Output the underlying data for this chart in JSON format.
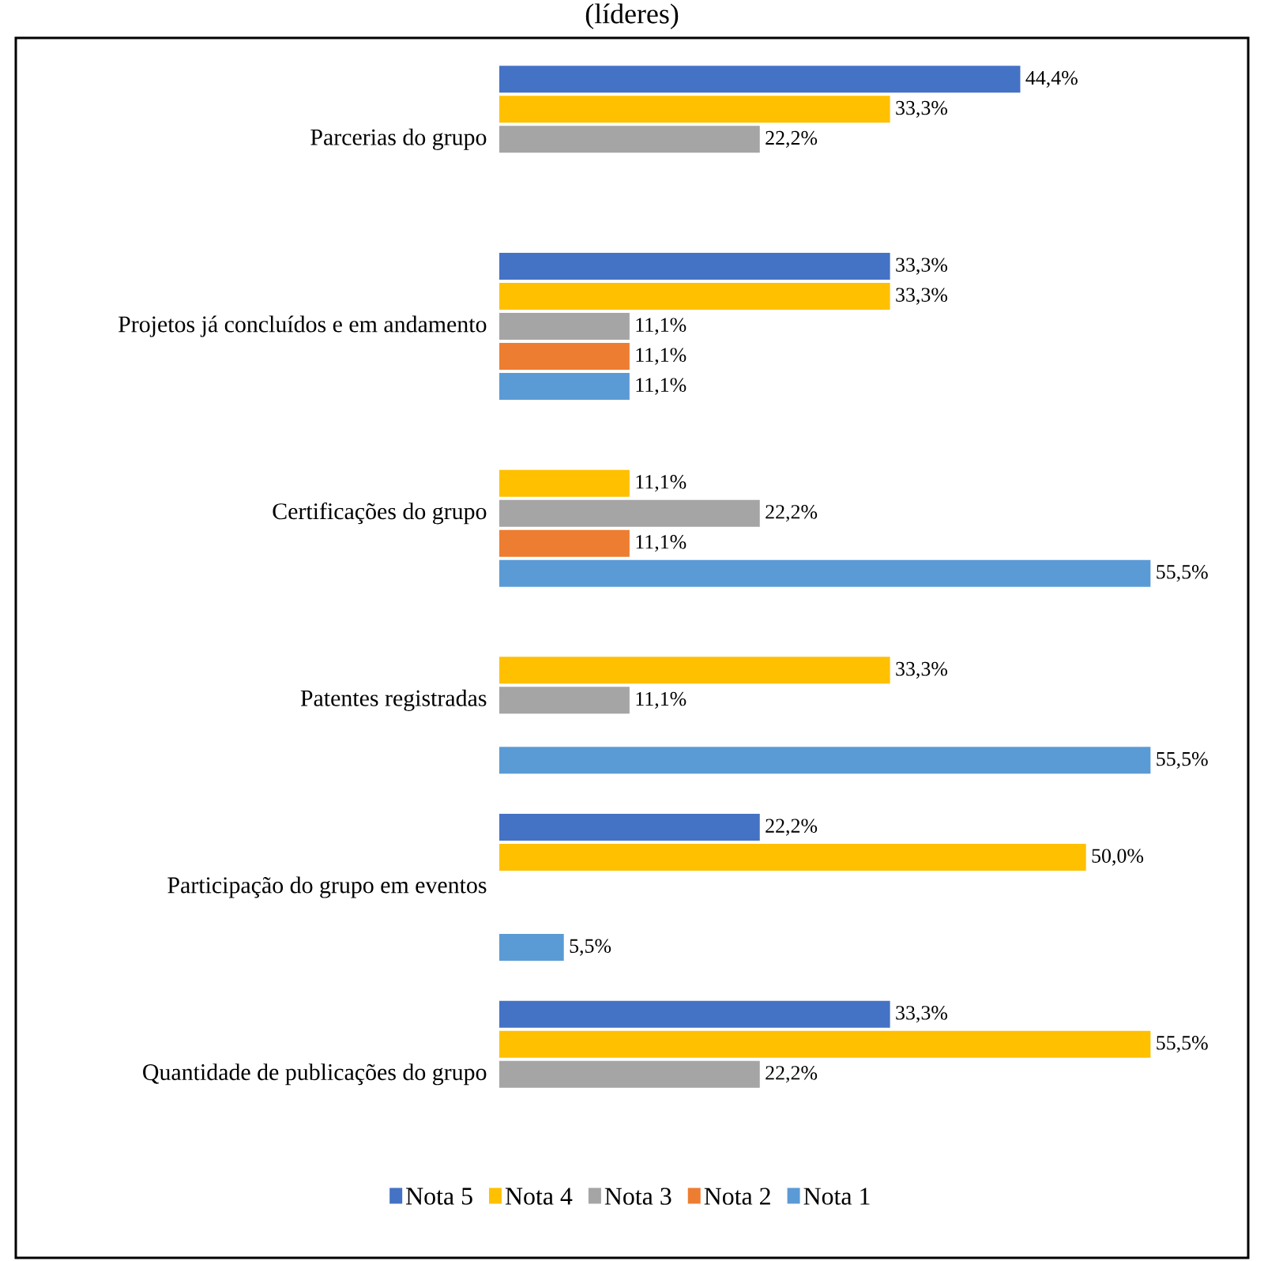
{
  "chart_data": {
    "type": "bar",
    "orientation": "horizontal",
    "title": "(líderes)",
    "categories": [
      "Parcerias do grupo",
      "Projetos já concluídos e em andamento",
      "Certificações do grupo",
      "Patentes registradas",
      "Participação do grupo em eventos",
      "Quantidade de publicações do grupo"
    ],
    "series": [
      {
        "name": "Nota 5",
        "color": "#4472c4",
        "values": [
          44.4,
          33.3,
          0,
          0,
          22.2,
          33.3
        ],
        "value_labels": [
          "44,4%",
          "33,3%",
          null,
          null,
          "22,2%",
          "33,3%"
        ]
      },
      {
        "name": "Nota 4",
        "color": "#ffc000",
        "values": [
          33.3,
          33.3,
          11.1,
          33.3,
          50.0,
          55.5
        ],
        "value_labels": [
          "33,3%",
          "33,3%",
          "11,1%",
          "33,3%",
          "50,0%",
          "55,5%"
        ]
      },
      {
        "name": "Nota 3",
        "color": "#a5a5a5",
        "values": [
          22.2,
          11.1,
          22.2,
          11.1,
          0,
          22.2
        ],
        "value_labels": [
          "22,2%",
          "11,1%",
          "22,2%",
          "11,1%",
          null,
          "22,2%"
        ]
      },
      {
        "name": "Nota 2",
        "color": "#ed7d31",
        "values": [
          0,
          11.1,
          11.1,
          0,
          0,
          0
        ],
        "value_labels": [
          null,
          "11,1%",
          "11,1%",
          null,
          null,
          null
        ]
      },
      {
        "name": "Nota 1",
        "color": "#5b9bd5",
        "values": [
          0,
          11.1,
          55.5,
          55.5,
          5.5,
          0
        ],
        "value_labels": [
          null,
          "11,1%",
          "55,5%",
          "55,5%",
          "5,5%",
          null
        ]
      }
    ],
    "legend": "bottom"
  }
}
